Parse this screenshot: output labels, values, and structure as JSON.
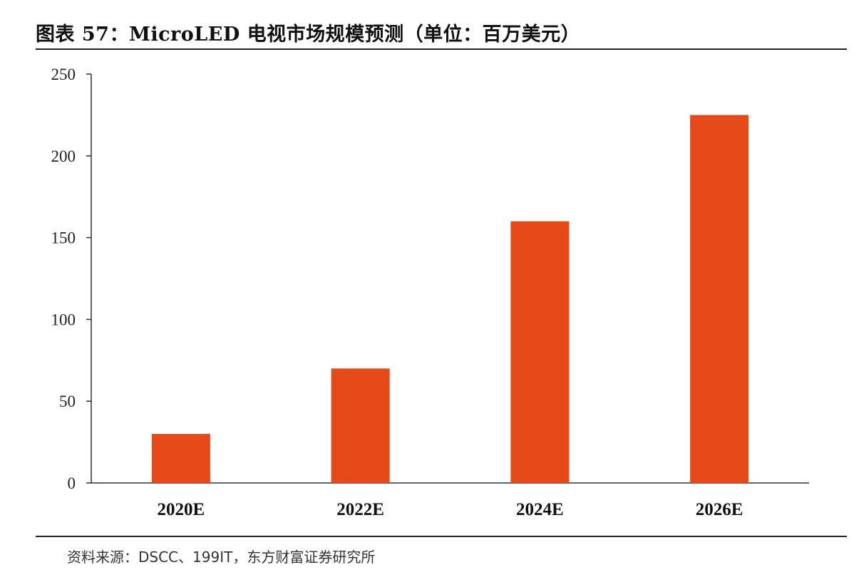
{
  "header": {
    "title": "图表 57：MicroLED 电视市场规模预测（单位：百万美元）"
  },
  "footer": {
    "source": "资料来源：DSCC、199IT，东方财富证券研究所"
  },
  "chart_data": {
    "type": "bar",
    "categories": [
      "2020E",
      "2022E",
      "2024E",
      "2026E"
    ],
    "values": [
      30,
      70,
      160,
      225
    ],
    "title": "图表 57：MicroLED 电视市场规模预测（单位：百万美元）",
    "xlabel": "",
    "ylabel": "",
    "ylim": [
      0,
      250
    ],
    "yticks": [
      0,
      50,
      100,
      150,
      200,
      250
    ],
    "grid": false,
    "legend": "none",
    "bar_color": "#E64A19"
  }
}
